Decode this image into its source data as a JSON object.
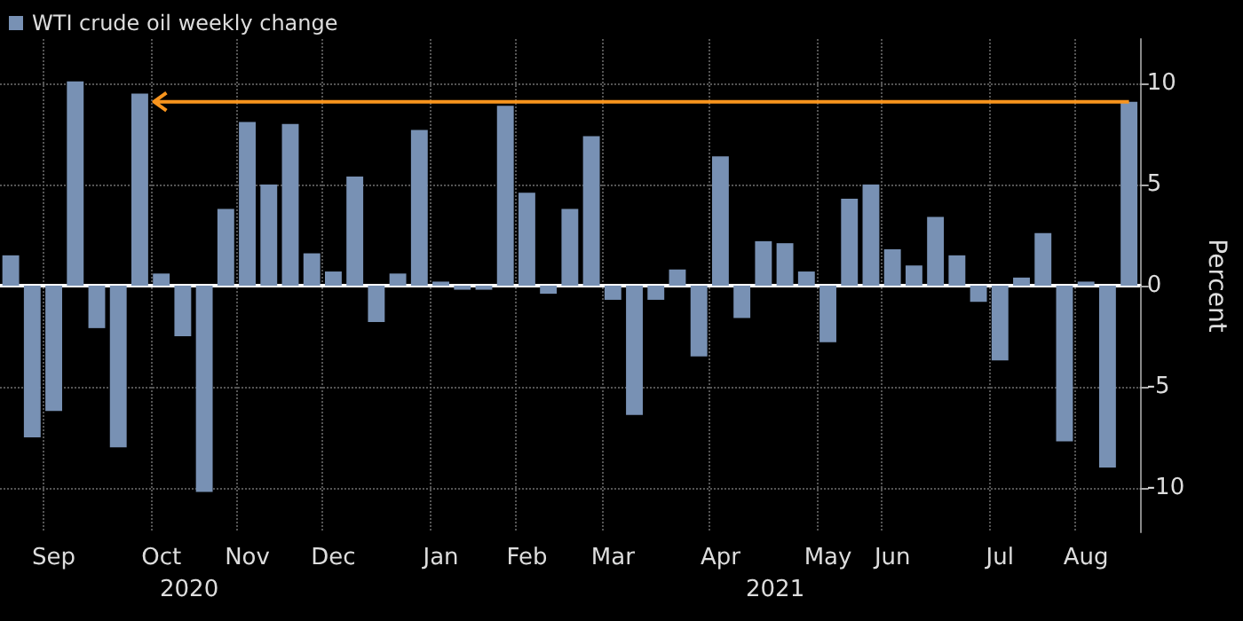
{
  "chart_data": {
    "type": "bar",
    "ylabel": "Percent",
    "categories": [
      null,
      null,
      "Sep",
      null,
      null,
      null,
      null,
      "Oct",
      null,
      null,
      null,
      "Nov",
      null,
      null,
      null,
      "Dec",
      null,
      null,
      null,
      null,
      "Jan",
      null,
      null,
      null,
      "Feb",
      null,
      null,
      null,
      "Mar",
      null,
      null,
      null,
      null,
      "Apr",
      null,
      null,
      null,
      null,
      "May",
      null,
      null,
      "Jun",
      null,
      null,
      null,
      null,
      "Jul",
      null,
      null,
      null,
      "Aug",
      null,
      null
    ],
    "series": [
      {
        "name": "WTI crude oil weekly change",
        "color": "#7891b4",
        "values": [
          1.5,
          -7.5,
          -6.2,
          10.1,
          -2.1,
          -8.0,
          9.5,
          0.6,
          -2.5,
          -10.2,
          3.8,
          8.1,
          5.0,
          8.0,
          1.6,
          0.7,
          5.4,
          -1.8,
          0.6,
          7.7,
          0.2,
          -0.2,
          -0.2,
          8.9,
          4.6,
          -0.4,
          3.8,
          7.4,
          -0.7,
          -6.4,
          -0.7,
          0.8,
          -3.5,
          6.4,
          -1.6,
          2.2,
          2.1,
          0.7,
          -2.8,
          4.3,
          5.0,
          1.8,
          1.0,
          3.4,
          1.5,
          -0.8,
          -3.7,
          0.4,
          2.6,
          -7.7,
          0.2,
          -9.0,
          9.1
        ]
      }
    ],
    "ylim": [
      -12.2,
      12.2
    ],
    "yticks": [
      -10,
      -5,
      0,
      5,
      10
    ],
    "grid": true,
    "legend": "top left",
    "ref_lines": [
      {
        "axis": "y",
        "value": 9.1,
        "color": "#f7941d"
      }
    ],
    "annotations": [
      "2020",
      "2021"
    ]
  }
}
